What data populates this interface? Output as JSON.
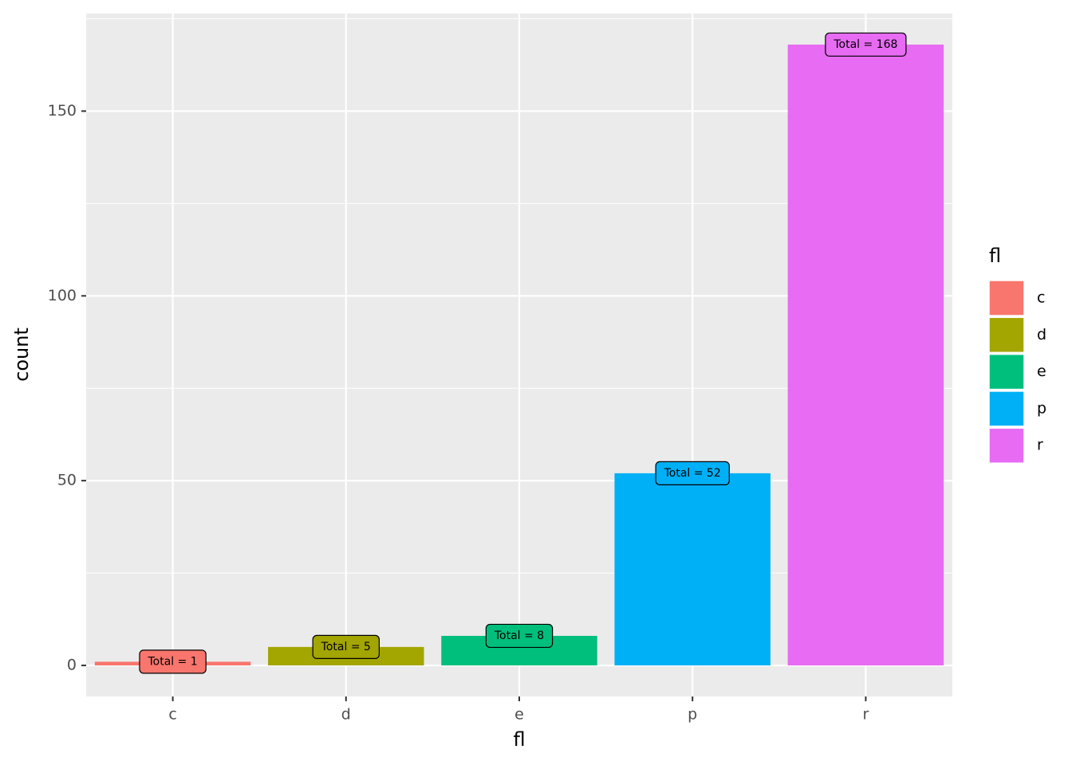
{
  "chart_data": {
    "type": "bar",
    "x_label": "fl",
    "y_label": "count",
    "legend_title": "fl",
    "categories": [
      "c",
      "d",
      "e",
      "p",
      "r"
    ],
    "values": [
      1,
      5,
      8,
      52,
      168
    ],
    "value_labels": [
      "Total = 1",
      "Total = 5",
      "Total = 8",
      "Total = 52",
      "Total = 168"
    ],
    "colors": [
      "#F8766D",
      "#A3A500",
      "#00BF7D",
      "#00B0F6",
      "#E76BF3"
    ],
    "ylim": [
      -8.4,
      176.4
    ],
    "yticks": [
      0,
      50,
      100,
      150
    ],
    "minor_yticks": [
      25,
      75,
      125,
      175
    ],
    "grid": true,
    "legend": "right"
  }
}
